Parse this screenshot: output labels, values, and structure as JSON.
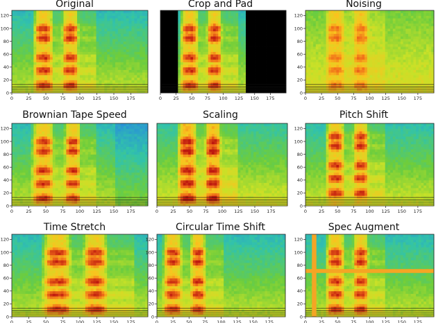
{
  "chart_data": [
    {
      "type": "heatmap",
      "title": "Original",
      "xticks": [
        0,
        25,
        50,
        75,
        100,
        125,
        150,
        175
      ],
      "yticks": [
        0,
        20,
        40,
        60,
        80,
        100,
        120
      ],
      "xlim": [
        0,
        200
      ],
      "ylim": [
        0,
        128
      ],
      "variant": "original"
    },
    {
      "type": "heatmap",
      "title": "Crop and Pad",
      "xticks": [
        0,
        25,
        50,
        75,
        100,
        125,
        150,
        175
      ],
      "yticks": [],
      "xlim": [
        0,
        200
      ],
      "ylim": [
        0,
        128
      ],
      "variant": "crop_pad",
      "pad_left_end": 30,
      "pad_right_start": 137
    },
    {
      "type": "heatmap",
      "title": "Noising",
      "xticks": [
        0,
        25,
        50,
        75,
        100,
        125,
        150,
        175
      ],
      "yticks": [
        0,
        20,
        40,
        60,
        80,
        100,
        120
      ],
      "xlim": [
        0,
        200
      ],
      "ylim": [
        0,
        128
      ],
      "variant": "noise"
    },
    {
      "type": "heatmap",
      "title": "Brownian Tape Speed",
      "xticks": [
        0,
        25,
        50,
        75,
        100,
        125,
        150,
        175
      ],
      "yticks": [
        0,
        20,
        40,
        60,
        80,
        100,
        120
      ],
      "xlim": [
        0,
        200
      ],
      "ylim": [
        0,
        128
      ],
      "variant": "brownian"
    },
    {
      "type": "heatmap",
      "title": "Scaling",
      "xticks": [
        0,
        25,
        50,
        75,
        100,
        125,
        150,
        175
      ],
      "yticks": [],
      "xlim": [
        0,
        200
      ],
      "ylim": [
        0,
        128
      ],
      "variant": "scaling"
    },
    {
      "type": "heatmap",
      "title": "Pitch Shift",
      "xticks": [
        0,
        25,
        50,
        75,
        100,
        125,
        150,
        175
      ],
      "yticks": [
        0,
        20,
        40,
        60,
        80,
        100,
        120
      ],
      "xlim": [
        0,
        200
      ],
      "ylim": [
        0,
        128
      ],
      "variant": "pitch"
    },
    {
      "type": "heatmap",
      "title": "Time Stretch",
      "xticks": [
        0,
        25,
        50,
        75,
        100,
        125,
        150,
        175
      ],
      "yticks": [
        0,
        20,
        40,
        60,
        80,
        100,
        120
      ],
      "xlim": [
        0,
        200
      ],
      "ylim": [
        0,
        128
      ],
      "variant": "stretch"
    },
    {
      "type": "heatmap",
      "title": "Circular Time Shift",
      "xticks": [
        0,
        25,
        50,
        75,
        100,
        125,
        150,
        175
      ],
      "yticks": [
        0,
        20,
        40,
        60,
        80,
        100,
        120
      ],
      "xlim": [
        0,
        200
      ],
      "ylim": [
        0,
        128
      ],
      "variant": "circular",
      "shift": -22
    },
    {
      "type": "heatmap",
      "title": "Spec Augment",
      "xticks": [
        0,
        25,
        50,
        75,
        100,
        125,
        150,
        175
      ],
      "yticks": [
        0,
        20,
        40,
        60,
        80,
        100,
        120
      ],
      "xlim": [
        0,
        200
      ],
      "ylim": [
        0,
        128
      ],
      "variant": "specaug",
      "time_mask": [
        10,
        17
      ],
      "freq_mask": [
        68,
        74
      ],
      "mask_color": "#f5a524"
    }
  ]
}
